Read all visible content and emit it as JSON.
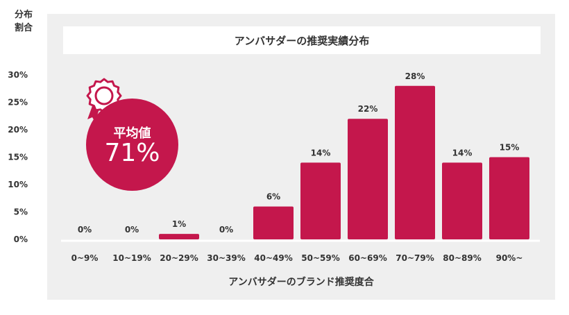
{
  "header": {
    "y_unit_label": "分布\n割合"
  },
  "badge": {
    "label": "平均値",
    "value": "71%"
  },
  "chart_data": {
    "type": "bar",
    "title": "アンバサダーの推奨実績分布",
    "xlabel": "アンバサダーのブランド推奨度合",
    "ylabel": "分布割合",
    "ylim": [
      0,
      30
    ],
    "yticks": [
      "0%",
      "5%",
      "10%",
      "15%",
      "20%",
      "25%",
      "30%"
    ],
    "categories": [
      "0~9%",
      "10~19%",
      "20~29%",
      "30~39%",
      "40~49%",
      "50~59%",
      "60~69%",
      "70~79%",
      "80~89%",
      "90%~"
    ],
    "values": [
      0,
      0,
      1,
      0,
      6,
      14,
      22,
      28,
      14,
      15
    ],
    "value_labels": [
      "0%",
      "0%",
      "1%",
      "0%",
      "6%",
      "14%",
      "22%",
      "28%",
      "14%",
      "15%"
    ],
    "bar_color": "#c4174c",
    "grid": false,
    "legend": "none"
  }
}
